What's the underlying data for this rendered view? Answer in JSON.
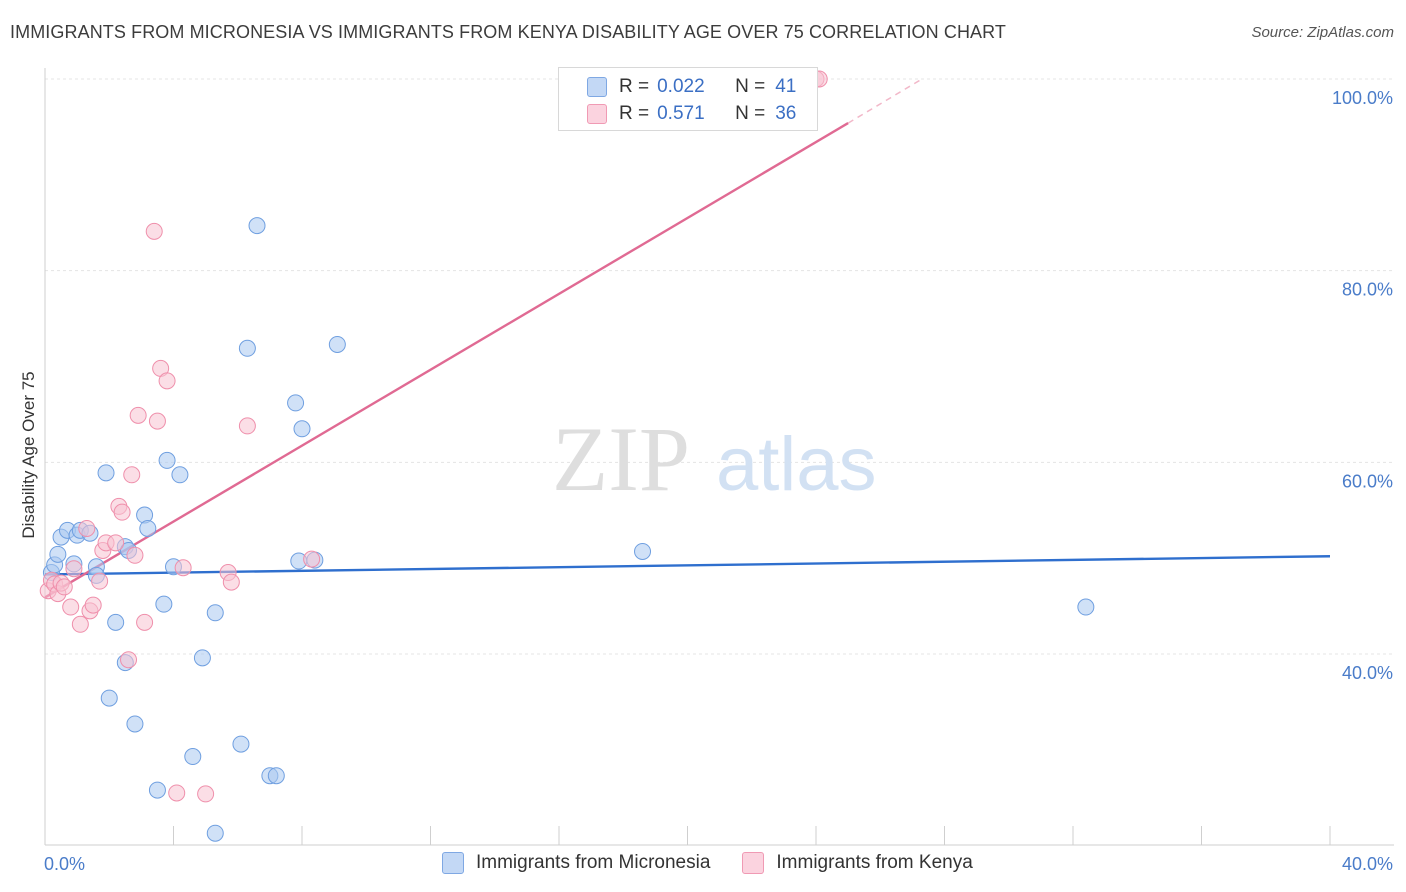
{
  "header": {
    "title": "IMMIGRANTS FROM MICRONESIA VS IMMIGRANTS FROM KENYA DISABILITY AGE OVER 75 CORRELATION CHART",
    "source": "Source: ZipAtlas.com"
  },
  "watermark": {
    "zip": "ZIP",
    "atlas": "atlas"
  },
  "legend": {
    "rows": [
      {
        "r_label": "R =",
        "r_value": "0.022",
        "n_label": "N =",
        "n_value": "41",
        "color": "#a9c8f0",
        "border": "#6f9fe0"
      },
      {
        "r_label": "R =",
        "r_value": "0.571",
        "n_label": "N =",
        "n_value": "36",
        "color": "#f8c2d2",
        "border": "#ef8fab"
      }
    ]
  },
  "bottom_legend": {
    "items": [
      {
        "label": "Immigrants from Micronesia",
        "color": "#c3d8f5",
        "border": "#7fa8e3"
      },
      {
        "label": "Immigrants from Kenya",
        "color": "#fbd3df",
        "border": "#f09ab4"
      }
    ]
  },
  "chart_data": {
    "type": "scatter",
    "title": "IMMIGRANTS FROM MICRONESIA VS IMMIGRANTS FROM KENYA DISABILITY AGE OVER 75 CORRELATION CHART",
    "xlabel": "",
    "ylabel": "Disability Age Over 75",
    "xlim": [
      0,
      40
    ],
    "ylim": [
      20,
      102
    ],
    "x_tick_labels": [
      "0.0%",
      "40.0%"
    ],
    "y_ticks": [
      40,
      60,
      80,
      100
    ],
    "y_tick_labels": [
      "40.0%",
      "60.0%",
      "80.0%",
      "100.0%"
    ],
    "grid": true,
    "legend_position": "top-center",
    "series": [
      {
        "name": "Immigrants from Micronesia",
        "color": "#6f9fe0",
        "fill": "#a9c8f0",
        "trend": {
          "x": [
            0,
            40
          ],
          "y": [
            48.3,
            50.2
          ],
          "color": "#2f6fce"
        },
        "points": [
          [
            0.2,
            48.5
          ],
          [
            0.3,
            49.3
          ],
          [
            0.4,
            50.4
          ],
          [
            0.5,
            52.2
          ],
          [
            0.7,
            52.9
          ],
          [
            0.9,
            49.4
          ],
          [
            1.0,
            52.4
          ],
          [
            1.1,
            52.9
          ],
          [
            1.4,
            52.6
          ],
          [
            1.6,
            49.1
          ],
          [
            1.6,
            48.2
          ],
          [
            1.9,
            58.9
          ],
          [
            2.0,
            35.4
          ],
          [
            2.2,
            43.3
          ],
          [
            2.5,
            51.2
          ],
          [
            2.5,
            39.1
          ],
          [
            2.6,
            50.8
          ],
          [
            2.8,
            32.7
          ],
          [
            3.1,
            54.5
          ],
          [
            3.2,
            53.1
          ],
          [
            3.5,
            25.8
          ],
          [
            3.7,
            45.2
          ],
          [
            3.8,
            60.2
          ],
          [
            4.0,
            49.1
          ],
          [
            4.2,
            58.7
          ],
          [
            4.6,
            29.3
          ],
          [
            4.9,
            39.6
          ],
          [
            5.3,
            44.3
          ],
          [
            5.3,
            21.3
          ],
          [
            6.1,
            30.6
          ],
          [
            6.3,
            71.9
          ],
          [
            6.6,
            84.7
          ],
          [
            7.0,
            27.3
          ],
          [
            7.2,
            27.3
          ],
          [
            7.8,
            66.2
          ],
          [
            7.9,
            49.7
          ],
          [
            8.0,
            63.5
          ],
          [
            8.4,
            49.8
          ],
          [
            9.1,
            72.3
          ],
          [
            18.6,
            50.7
          ],
          [
            32.4,
            44.9
          ]
        ]
      },
      {
        "name": "Immigrants from Kenya",
        "color": "#ef8fab",
        "fill": "#f8c2d2",
        "trend": {
          "x": [
            0,
            25
          ],
          "y": [
            45.9,
            95.4
          ],
          "dash_to": {
            "x": 27.3,
            "y": 100.0
          },
          "color": "#e06a93"
        },
        "points": [
          [
            0.1,
            46.6
          ],
          [
            0.2,
            47.7
          ],
          [
            0.3,
            47.3
          ],
          [
            0.4,
            46.3
          ],
          [
            0.5,
            47.4
          ],
          [
            0.6,
            47.0
          ],
          [
            0.8,
            44.9
          ],
          [
            0.9,
            48.9
          ],
          [
            1.1,
            43.1
          ],
          [
            1.3,
            53.1
          ],
          [
            1.4,
            44.5
          ],
          [
            1.5,
            45.1
          ],
          [
            1.7,
            47.6
          ],
          [
            1.8,
            50.8
          ],
          [
            1.9,
            51.6
          ],
          [
            2.2,
            51.6
          ],
          [
            2.3,
            55.4
          ],
          [
            2.4,
            54.8
          ],
          [
            2.6,
            39.4
          ],
          [
            2.7,
            58.7
          ],
          [
            2.8,
            50.3
          ],
          [
            2.9,
            64.9
          ],
          [
            3.1,
            43.3
          ],
          [
            3.4,
            84.1
          ],
          [
            3.5,
            64.3
          ],
          [
            3.6,
            69.8
          ],
          [
            3.8,
            68.5
          ],
          [
            4.3,
            49.0
          ],
          [
            4.1,
            25.5
          ],
          [
            5.0,
            25.4
          ],
          [
            5.7,
            48.5
          ],
          [
            5.8,
            47.5
          ],
          [
            6.3,
            63.8
          ],
          [
            8.3,
            49.9
          ],
          [
            24.0,
            100.0
          ],
          [
            24.1,
            100.0
          ]
        ]
      }
    ]
  }
}
